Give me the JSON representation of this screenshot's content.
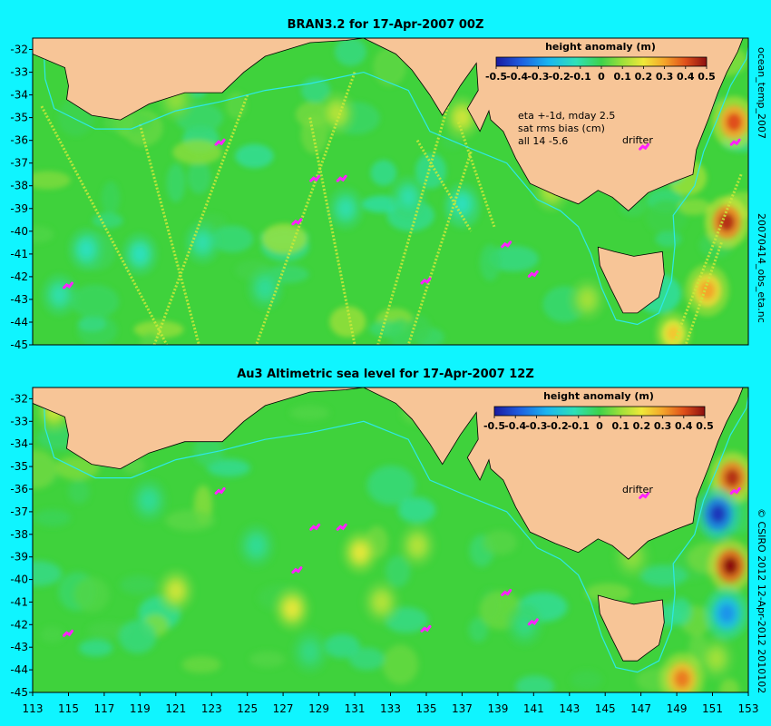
{
  "colors": {
    "background": "#00f4ff",
    "land": "#f7c597",
    "ocean_base": "#3fd23c",
    "drifter": "#ff22ff",
    "shelf_line": "#2ee8e8",
    "coast": "#000000"
  },
  "top_panel": {
    "title": "BRAN3.2 for 17-Apr-2007 00Z",
    "colorbar_title": "height anomaly (m)",
    "colorbar_ticks": [
      "-0.5",
      "-0.4",
      "-0.3",
      "-0.2",
      "-0.1",
      "0",
      "0.1",
      "0.2",
      "0.3",
      "0.4",
      "0.5"
    ],
    "info_line1": "eta +-1d, mday 2.5",
    "info_line2": "sat rms bias (cm)",
    "info_line3": "all 14 -5.6",
    "drifter_label": "drifter",
    "side_label_upper": "ocean_temp_2007",
    "side_label_lower": "20070414_obs_eta.nc"
  },
  "bottom_panel": {
    "title": "Au3 Altimetric sea level  for 17-Apr-2007 12Z",
    "colorbar_title": "height anomaly (m)",
    "colorbar_ticks": [
      "-0.5",
      "-0.4",
      "-0.3",
      "-0.2",
      "-0.1",
      "0",
      "0.1",
      "0.2",
      "0.3",
      "0.4",
      "0.5"
    ],
    "drifter_label": "drifter",
    "side_label": "© CSIRO 2012  12-Apr-2012 2010102"
  },
  "chart_data": {
    "type": "heatmap",
    "colormap_range": [
      -0.5,
      0.5
    ],
    "lat_ticks": [
      "-32",
      "-33",
      "-34",
      "-35",
      "-36",
      "-37",
      "-38",
      "-39",
      "-40",
      "-41",
      "-42",
      "-43",
      "-44",
      "-45"
    ],
    "lon_ticks": [
      "113",
      "115",
      "117",
      "119",
      "121",
      "123",
      "125",
      "127",
      "129",
      "131",
      "133",
      "135",
      "137",
      "139",
      "141",
      "143",
      "145",
      "147",
      "149",
      "151",
      "153"
    ],
    "lat_range": [
      -45,
      -31.5
    ],
    "lon_range": [
      113,
      153
    ],
    "drifter_positions": [
      {
        "lon": 115.0,
        "lat": -42.4
      },
      {
        "lon": 123.5,
        "lat": -36.1
      },
      {
        "lon": 127.8,
        "lat": -39.6
      },
      {
        "lon": 128.8,
        "lat": -37.7
      },
      {
        "lon": 130.3,
        "lat": -37.7
      },
      {
        "lon": 135.0,
        "lat": -42.2
      },
      {
        "lon": 139.5,
        "lat": -40.6
      },
      {
        "lon": 141.0,
        "lat": -41.9
      },
      {
        "lon": 147.2,
        "lat": -36.3
      },
      {
        "lon": 152.3,
        "lat": -36.1
      }
    ],
    "top_eddies": [
      {
        "lon": 151.8,
        "lat": -39.6,
        "value": 0.45
      },
      {
        "lon": 152.2,
        "lat": -35.2,
        "value": 0.4
      },
      {
        "lon": 150.7,
        "lat": -42.6,
        "value": 0.3
      },
      {
        "lon": 148.8,
        "lat": -44.5,
        "value": 0.25
      },
      {
        "lon": 141.8,
        "lat": -34.8,
        "value": 0.2
      },
      {
        "lon": 137.0,
        "lat": -35.0,
        "value": 0.15
      },
      {
        "lon": 130.0,
        "lat": -34.8,
        "value": 0.12
      },
      {
        "lon": 121.0,
        "lat": -34.2,
        "value": 0.08
      },
      {
        "lon": 116.0,
        "lat": -40.8,
        "value": -0.12
      },
      {
        "lon": 119.0,
        "lat": -41.0,
        "value": -0.12
      },
      {
        "lon": 122.5,
        "lat": -40.5,
        "value": -0.1
      },
      {
        "lon": 130.5,
        "lat": -39.0,
        "value": -0.1
      },
      {
        "lon": 134.0,
        "lat": -38.5,
        "value": -0.1
      },
      {
        "lon": 137.0,
        "lat": -38.8,
        "value": -0.12
      },
      {
        "lon": 126.0,
        "lat": -42.5,
        "value": -0.08
      },
      {
        "lon": 114.5,
        "lat": -42.8,
        "value": -0.1
      },
      {
        "lon": 142.0,
        "lat": -38.2,
        "value": 0.12
      },
      {
        "lon": 144.0,
        "lat": -43.0,
        "value": 0.1
      }
    ],
    "bottom_eddies": [
      {
        "lon": 152.0,
        "lat": -39.4,
        "value": 0.5
      },
      {
        "lon": 152.1,
        "lat": -35.5,
        "value": 0.45
      },
      {
        "lon": 151.3,
        "lat": -37.1,
        "value": -0.45
      },
      {
        "lon": 151.8,
        "lat": -41.5,
        "value": -0.3
      },
      {
        "lon": 149.3,
        "lat": -44.4,
        "value": 0.35
      },
      {
        "lon": 151.2,
        "lat": -43.5,
        "value": 0.1
      },
      {
        "lon": 121.0,
        "lat": -40.5,
        "value": 0.15
      },
      {
        "lon": 127.5,
        "lat": -41.3,
        "value": 0.18
      },
      {
        "lon": 131.3,
        "lat": -38.8,
        "value": 0.18
      },
      {
        "lon": 132.5,
        "lat": -41.0,
        "value": 0.12
      },
      {
        "lon": 114.2,
        "lat": -32.5,
        "value": 0.15
      },
      {
        "lon": 134.5,
        "lat": -38.5,
        "value": 0.12
      },
      {
        "lon": 119.5,
        "lat": -36.5,
        "value": -0.08
      },
      {
        "lon": 125.5,
        "lat": -38.5,
        "value": -0.08
      },
      {
        "lon": 128.5,
        "lat": -43.2,
        "value": -0.06
      },
      {
        "lon": 140.5,
        "lat": -42.0,
        "value": -0.06
      },
      {
        "lon": 146.5,
        "lat": -39.0,
        "value": 0.08
      }
    ]
  }
}
